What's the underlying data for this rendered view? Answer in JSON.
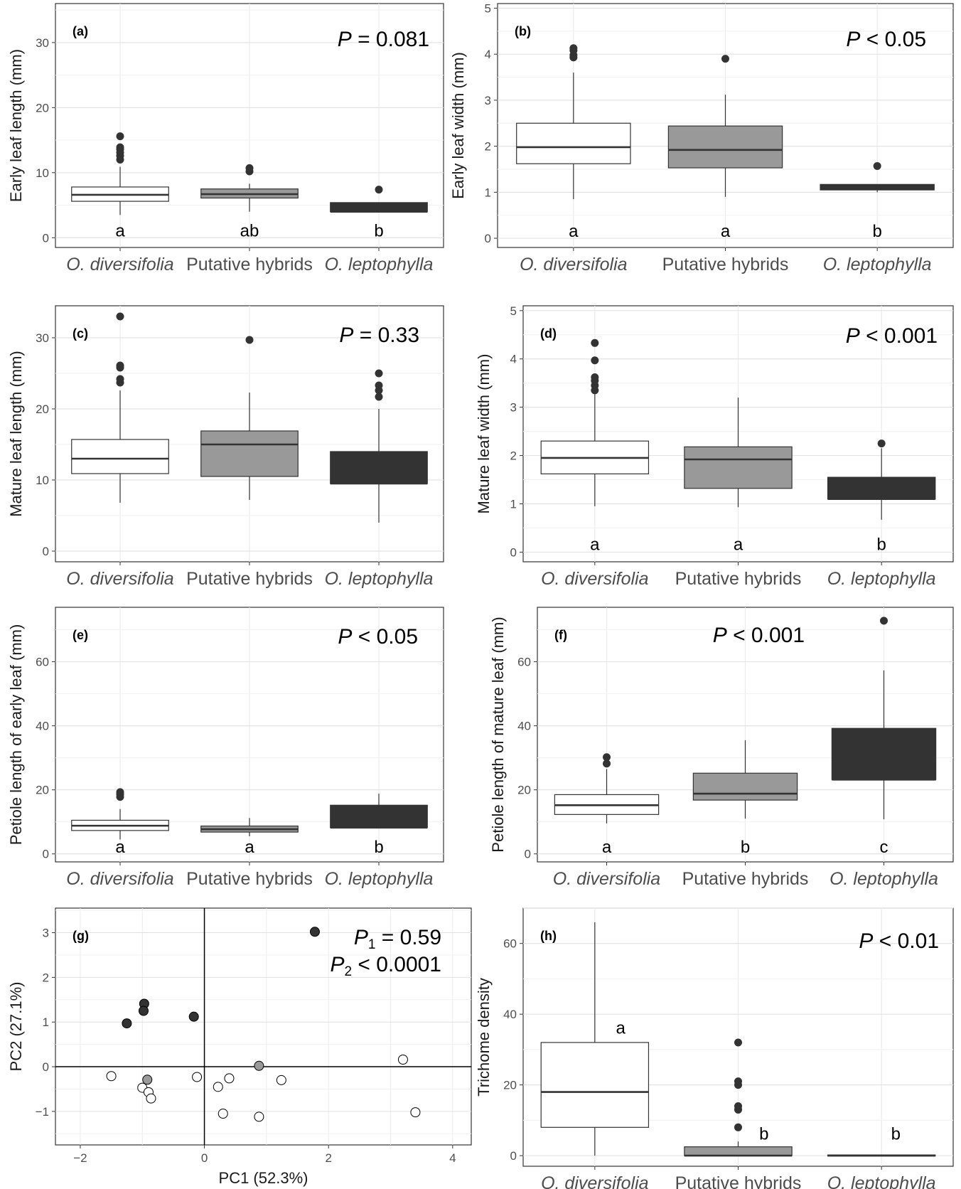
{
  "figure": {
    "categories": [
      "O. diversifolia",
      "Putative hybrids",
      "O. leptophylla"
    ],
    "category_italic": [
      true,
      false,
      true
    ],
    "fills": [
      "#ffffff",
      "#999999",
      "#333333"
    ],
    "line_color": "#333333",
    "point_color": "#333333"
  },
  "chart_data": [
    {
      "id": "a",
      "type": "box",
      "label": "(a)",
      "ylabel": "Early leaf length (mm)",
      "ylim": [
        -1.5,
        36
      ],
      "yticks": [
        0,
        10,
        20,
        30
      ],
      "p_text": [
        {
          "italic": "P",
          "rest": " = 0.081"
        }
      ],
      "letters": [
        "a",
        "ab",
        "b"
      ],
      "letter_y": 1,
      "boxes": [
        {
          "category": "O. diversifolia",
          "min": 3.5,
          "q1": 5.6,
          "median": 6.6,
          "q3": 7.8,
          "max": 10.9,
          "outliers": [
            12.0,
            12.6,
            13.1,
            13.6,
            13.9,
            15.6
          ]
        },
        {
          "category": "Putative hybrids",
          "min": 4.0,
          "q1": 6.1,
          "median": 6.7,
          "q3": 7.5,
          "max": 8.3,
          "outliers": [
            10.2,
            10.7
          ]
        },
        {
          "category": "O. leptophylla",
          "min": 4.0,
          "q1": 4.0,
          "median": 4.0,
          "q3": 5.4,
          "max": 5.4,
          "outliers": [
            7.4
          ]
        }
      ]
    },
    {
      "id": "b",
      "type": "box",
      "label": "(b)",
      "ylabel": "Early leaf width (mm)",
      "ylim": [
        -0.2,
        5.1
      ],
      "yticks": [
        0,
        1,
        2,
        3,
        4,
        5
      ],
      "p_text": [
        {
          "italic": "P",
          "rest": " < 0.05"
        }
      ],
      "letters": [
        "a",
        "a",
        "b"
      ],
      "letter_y": 0.15,
      "boxes": [
        {
          "category": "O. diversifolia",
          "min": 0.85,
          "q1": 1.62,
          "median": 1.98,
          "q3": 2.5,
          "max": 3.6,
          "outliers": [
            3.93,
            3.98,
            4.08,
            4.13
          ]
        },
        {
          "category": "Putative hybrids",
          "min": 0.9,
          "q1": 1.53,
          "median": 1.92,
          "q3": 2.44,
          "max": 3.12,
          "outliers": [
            3.9
          ]
        },
        {
          "category": "O. leptophylla",
          "min": 1.0,
          "q1": 1.05,
          "median": 1.1,
          "q3": 1.17,
          "max": 1.17,
          "outliers": [
            1.57
          ]
        }
      ]
    },
    {
      "id": "c",
      "type": "box",
      "label": "(c)",
      "ylabel": "Mature leaf length (mm)",
      "ylim": [
        -1.5,
        34.5
      ],
      "yticks": [
        0,
        10,
        20,
        30
      ],
      "p_text": [
        {
          "italic": "P",
          "rest": " = 0.33"
        }
      ],
      "letters": [
        "",
        "",
        ""
      ],
      "letter_y": 1,
      "boxes": [
        {
          "category": "O. diversifolia",
          "min": 6.8,
          "q1": 10.9,
          "median": 13.0,
          "q3": 15.7,
          "max": 22.6,
          "outliers": [
            23.7,
            24.2,
            25.8,
            26.1,
            33.0
          ]
        },
        {
          "category": "Putative hybrids",
          "min": 7.2,
          "q1": 10.5,
          "median": 15.0,
          "q3": 16.9,
          "max": 22.3,
          "outliers": [
            29.7
          ]
        },
        {
          "category": "O. leptophylla",
          "min": 4.0,
          "q1": 9.5,
          "median": 9.5,
          "q3": 14.0,
          "max": 20.0,
          "outliers": [
            21.7,
            22.6,
            23.3,
            25.0
          ]
        }
      ]
    },
    {
      "id": "d",
      "type": "box",
      "label": "(d)",
      "ylabel": "Mature leaf width (mm)",
      "ylim": [
        -0.2,
        5.1
      ],
      "yticks": [
        0,
        1,
        2,
        3,
        4,
        5
      ],
      "p_text": [
        {
          "italic": "P",
          "rest": " < 0.001"
        }
      ],
      "letters": [
        "a",
        "a",
        "b"
      ],
      "letter_y": 0.15,
      "boxes": [
        {
          "category": "O. diversifolia",
          "min": 0.95,
          "q1": 1.62,
          "median": 1.95,
          "q3": 2.3,
          "max": 3.3,
          "outliers": [
            3.35,
            3.45,
            3.55,
            3.62,
            3.97,
            4.33
          ]
        },
        {
          "category": "Putative hybrids",
          "min": 0.93,
          "q1": 1.32,
          "median": 1.92,
          "q3": 2.18,
          "max": 3.2,
          "outliers": []
        },
        {
          "category": "O. leptophylla",
          "min": 0.67,
          "q1": 1.1,
          "median": 1.1,
          "q3": 1.55,
          "max": 2.15,
          "outliers": [
            2.25
          ]
        }
      ]
    },
    {
      "id": "e",
      "type": "box",
      "label": "(e)",
      "ylabel": "Petiole length of early leaf (mm)",
      "ylim": [
        -2.5,
        77
      ],
      "yticks": [
        0,
        20,
        40,
        60
      ],
      "p_text": [
        {
          "italic": "P",
          "rest": " < 0.05"
        }
      ],
      "letters": [
        "a",
        "a",
        "b"
      ],
      "letter_y": 2,
      "boxes": [
        {
          "category": "O. diversifolia",
          "min": 4.5,
          "q1": 7.3,
          "median": 8.8,
          "q3": 10.5,
          "max": 14.0,
          "outliers": [
            17.8,
            18.6,
            19.3
          ]
        },
        {
          "category": "Putative hybrids",
          "min": 5.5,
          "q1": 6.8,
          "median": 7.7,
          "q3": 8.7,
          "max": 11.2,
          "outliers": []
        },
        {
          "category": "O. leptophylla",
          "min": 8.2,
          "q1": 8.2,
          "median": 8.2,
          "q3": 15.2,
          "max": 18.8,
          "outliers": []
        }
      ]
    },
    {
      "id": "f",
      "type": "box",
      "label": "(f)",
      "ylabel": "Petiole length of mature leaf (mm)",
      "ylim": [
        -2.5,
        77
      ],
      "yticks": [
        0,
        20,
        40,
        60
      ],
      "p_text": [
        {
          "italic": "P",
          "rest": " < 0.001"
        }
      ],
      "letters": [
        "a",
        "b",
        "c"
      ],
      "letter_y": 2,
      "boxes": [
        {
          "category": "O. diversifolia",
          "min": 9.5,
          "q1": 12.3,
          "median": 15.2,
          "q3": 18.5,
          "max": 26.5,
          "outliers": [
            28.2,
            30.2
          ]
        },
        {
          "category": "Putative hybrids",
          "min": 11.0,
          "q1": 16.8,
          "median": 18.8,
          "q3": 25.2,
          "max": 35.5,
          "outliers": []
        },
        {
          "category": "O. leptophylla",
          "min": 10.8,
          "q1": 23.2,
          "median": 23.2,
          "q3": 39.2,
          "max": 57.3,
          "outliers": [
            72.8
          ]
        }
      ]
    },
    {
      "id": "g",
      "type": "scatter",
      "label": "(g)",
      "xlabel": "PC1 (52.3%)",
      "ylabel": "PC2 (27.1%)",
      "xlim": [
        -2.4,
        4.3
      ],
      "ylim": [
        -1.75,
        3.55
      ],
      "xticks": [
        -2,
        0,
        2,
        4
      ],
      "yticks": [
        -1,
        0,
        1,
        2,
        3
      ],
      "p_text": [
        {
          "italic": "P",
          "sub": "1",
          "rest": " = 0.59"
        },
        {
          "italic": "P",
          "sub": "2",
          "rest": " < 0.0001"
        }
      ],
      "points": [
        {
          "x": 1.78,
          "y": 3.02,
          "group": 2
        },
        {
          "x": -0.97,
          "y": 1.41,
          "group": 2
        },
        {
          "x": -0.98,
          "y": 1.25,
          "group": 2
        },
        {
          "x": -1.25,
          "y": 0.97,
          "group": 2
        },
        {
          "x": -0.17,
          "y": 1.12,
          "group": 2
        },
        {
          "x": 0.88,
          "y": 0.02,
          "group": 1
        },
        {
          "x": -0.92,
          "y": -0.29,
          "group": 1
        },
        {
          "x": -1.5,
          "y": -0.21,
          "group": 0
        },
        {
          "x": -1.0,
          "y": -0.47,
          "group": 0
        },
        {
          "x": -0.9,
          "y": -0.57,
          "group": 0
        },
        {
          "x": -0.86,
          "y": -0.71,
          "group": 0
        },
        {
          "x": -0.12,
          "y": -0.23,
          "group": 0
        },
        {
          "x": 0.22,
          "y": -0.45,
          "group": 0
        },
        {
          "x": 0.4,
          "y": -0.26,
          "group": 0
        },
        {
          "x": 0.3,
          "y": -1.05,
          "group": 0
        },
        {
          "x": 0.88,
          "y": -1.12,
          "group": 0
        },
        {
          "x": 1.24,
          "y": -0.3,
          "group": 0
        },
        {
          "x": 3.2,
          "y": 0.16,
          "group": 0
        },
        {
          "x": 3.4,
          "y": -1.02,
          "group": 0
        }
      ]
    },
    {
      "id": "h",
      "type": "box",
      "label": "(h)",
      "ylabel": "Trichome density",
      "ylim": [
        -3,
        70
      ],
      "yticks": [
        0,
        20,
        40,
        60
      ],
      "p_text": [
        {
          "italic": "P",
          "rest": " < 0.01"
        }
      ],
      "letters": [
        "a",
        "b",
        "b"
      ],
      "letter_xoff": [
        0.18,
        0.18,
        0.1
      ],
      "letter_y_each": [
        36,
        6,
        6
      ],
      "boxes": [
        {
          "category": "O. diversifolia",
          "min": 0,
          "q1": 8,
          "median": 18,
          "q3": 32,
          "max": 66,
          "outliers": []
        },
        {
          "category": "Putative hybrids",
          "min": 0,
          "q1": 0,
          "median": 0,
          "q3": 2.5,
          "max": 4,
          "outliers": [
            8,
            13,
            14,
            20,
            21,
            32
          ]
        },
        {
          "category": "O. leptophylla",
          "min": 0,
          "q1": 0,
          "median": 0,
          "q3": 0.2,
          "max": 0.2,
          "outliers": []
        }
      ]
    }
  ]
}
